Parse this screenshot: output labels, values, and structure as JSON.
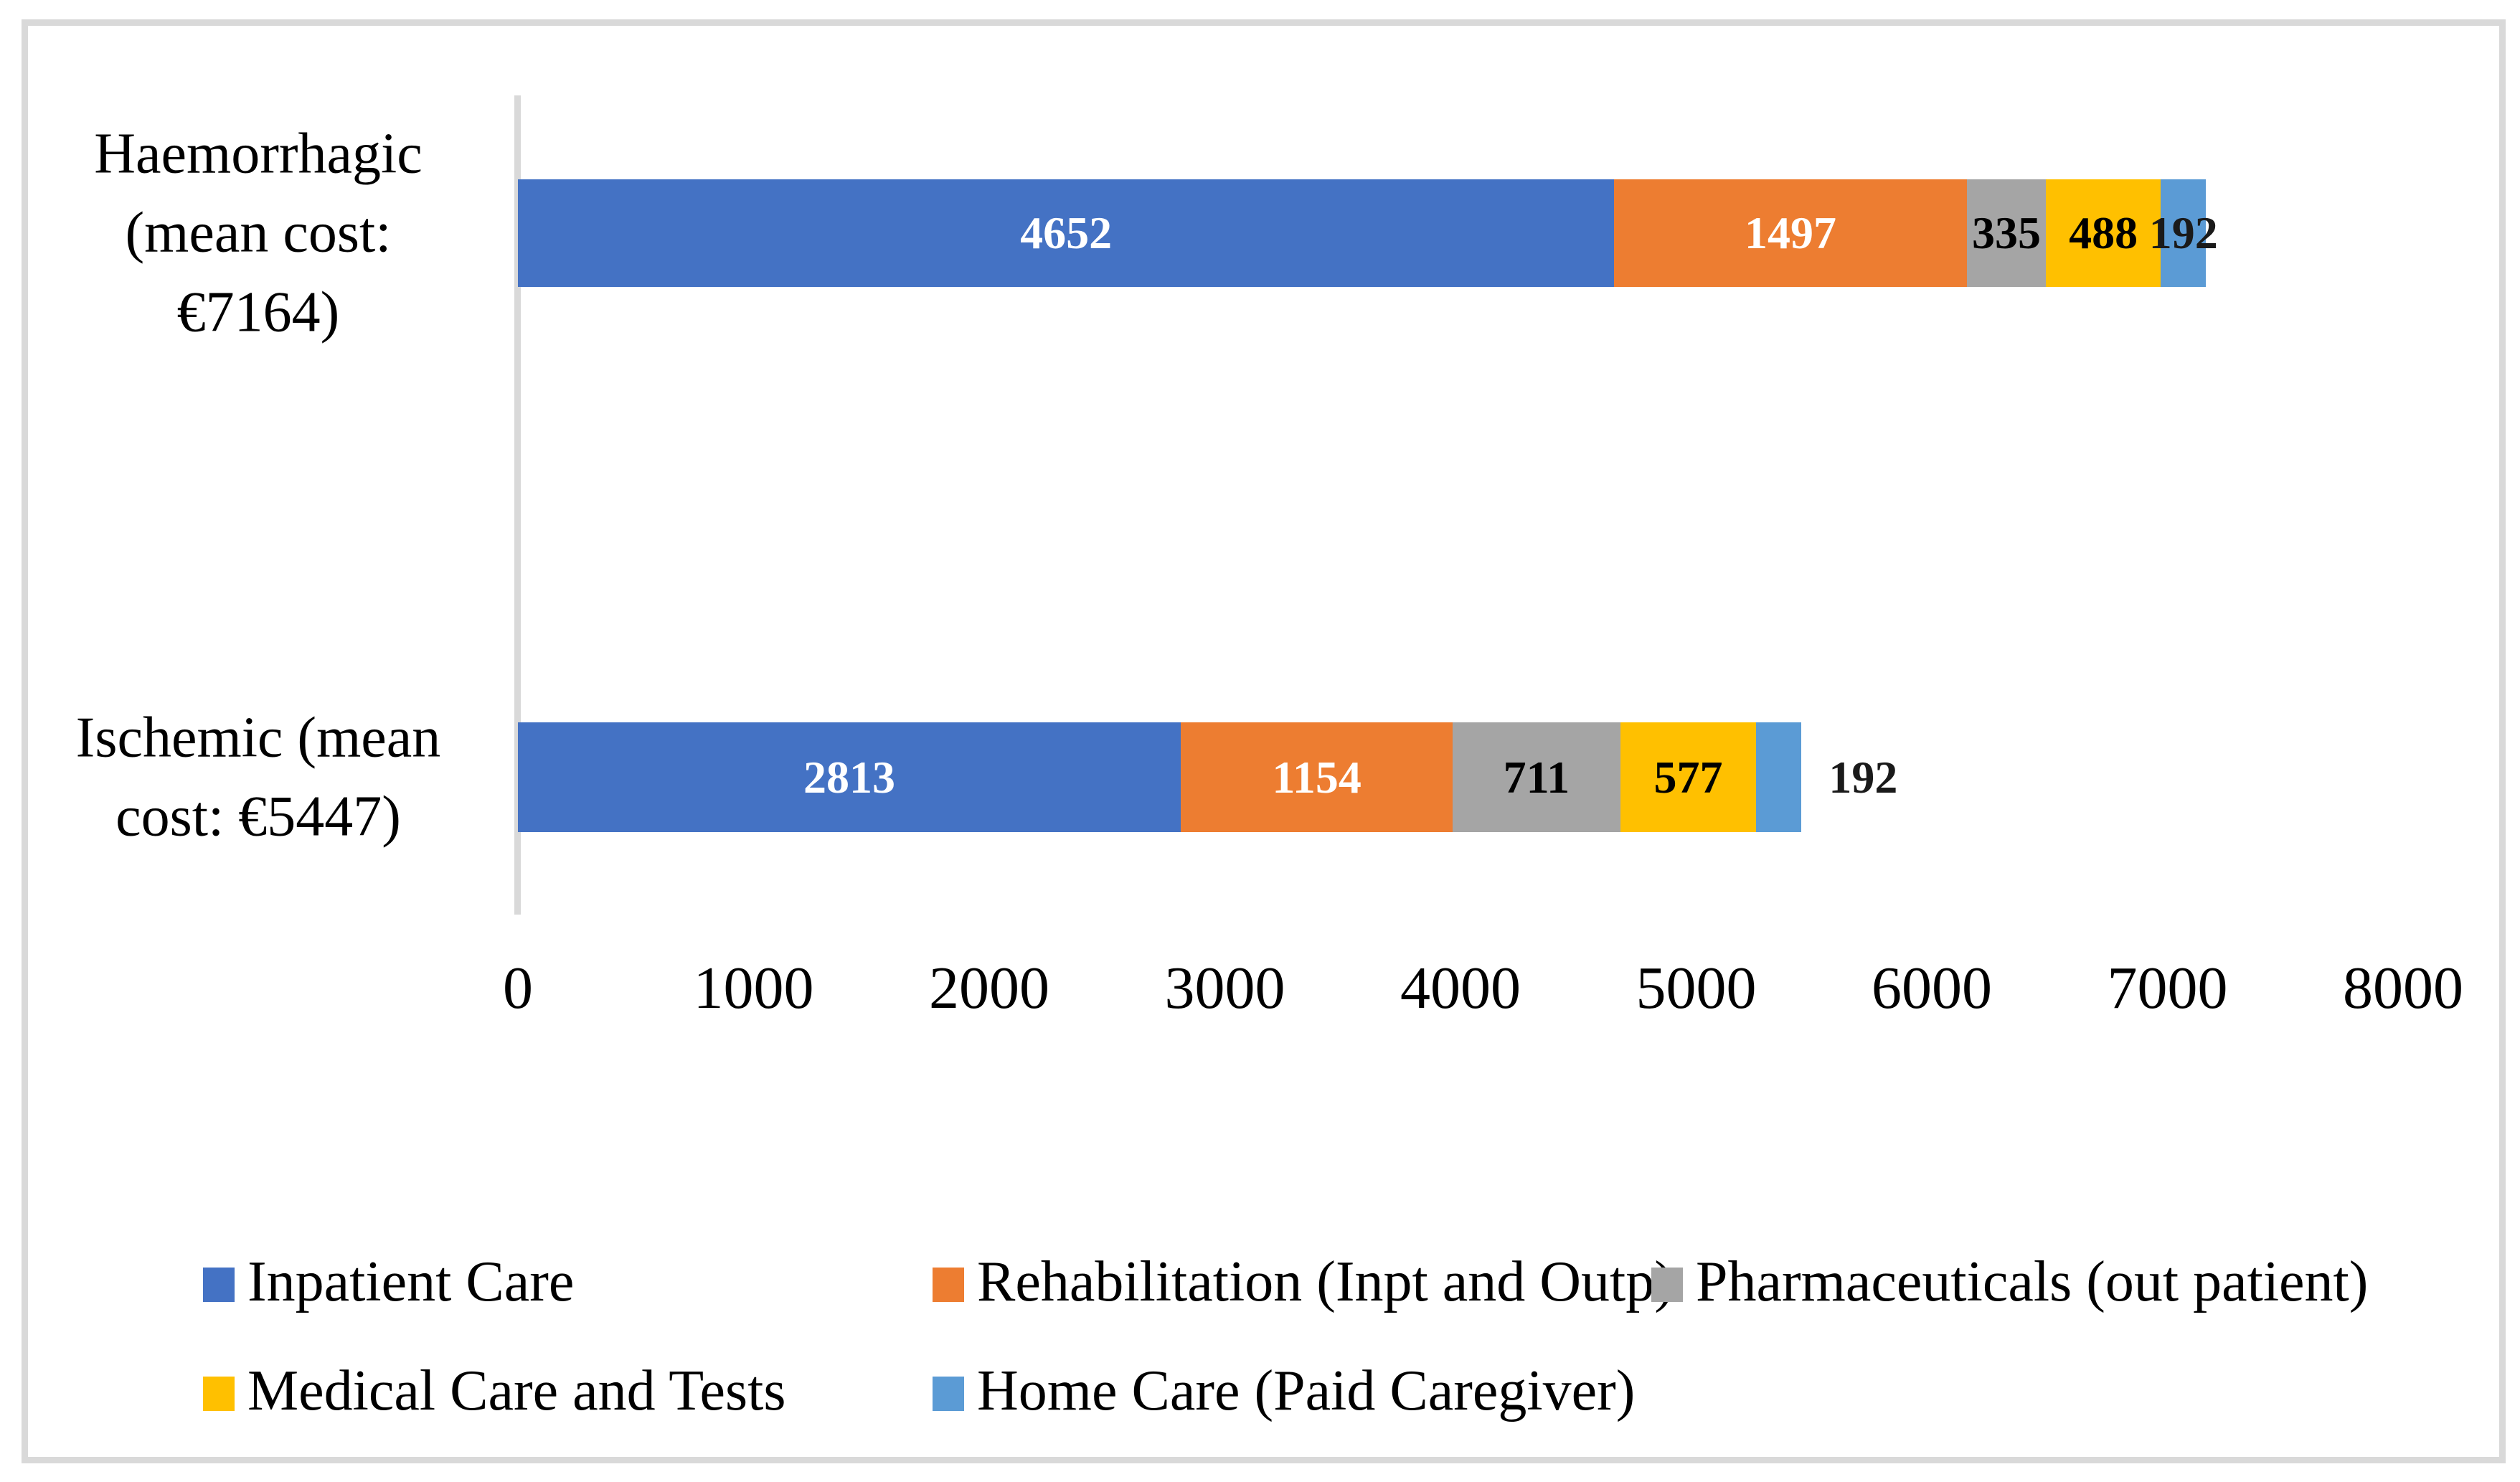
{
  "chart_data": {
    "type": "bar",
    "orientation": "horizontal",
    "stacked": true,
    "title": "",
    "xlabel": "",
    "ylabel": "",
    "xlim": [
      0,
      8000
    ],
    "x_ticks": [
      0,
      1000,
      2000,
      3000,
      4000,
      5000,
      6000,
      7000,
      8000
    ],
    "grid": false,
    "legend_position": "bottom",
    "categories": [
      "Haemorrhagic (mean cost: €7164)",
      "Ischemic (mean cost: €5447)"
    ],
    "category_labels_multiline": [
      "Haemorrhagic\n(mean cost: €7164)",
      "Ischemic (mean\ncost: €5447)"
    ],
    "category_totals": [
      7164,
      5447
    ],
    "series": [
      {
        "name": "Inpatient Care",
        "color": "#4472c4",
        "label_color": "#ffffff",
        "values": [
          4652,
          2813
        ],
        "label_outside": [
          false,
          false
        ]
      },
      {
        "name": "Rehabilitation (Inpt and Outp)",
        "color": "#ed7d31",
        "label_color": "#ffffff",
        "values": [
          1497,
          1154
        ],
        "label_outside": [
          false,
          false
        ]
      },
      {
        "name": "Pharmaceuticals (out patient)",
        "color": "#a5a5a5",
        "label_color": "#000000",
        "values": [
          335,
          711
        ],
        "label_outside": [
          false,
          false
        ]
      },
      {
        "name": "Medical Care and Tests",
        "color": "#ffc000",
        "label_color": "#000000",
        "values": [
          488,
          577
        ],
        "label_outside": [
          false,
          false
        ]
      },
      {
        "name": "Home Care (Paid Caregiver)",
        "color": "#5b9bd5",
        "label_color": "#1a1a1a",
        "values": [
          192,
          192
        ],
        "label_outside": [
          false,
          true
        ]
      }
    ]
  },
  "colors": {
    "background": "#ffffff",
    "border": "#d9d9d9",
    "axis_line": "#d9d9d9",
    "text": "#000000"
  }
}
